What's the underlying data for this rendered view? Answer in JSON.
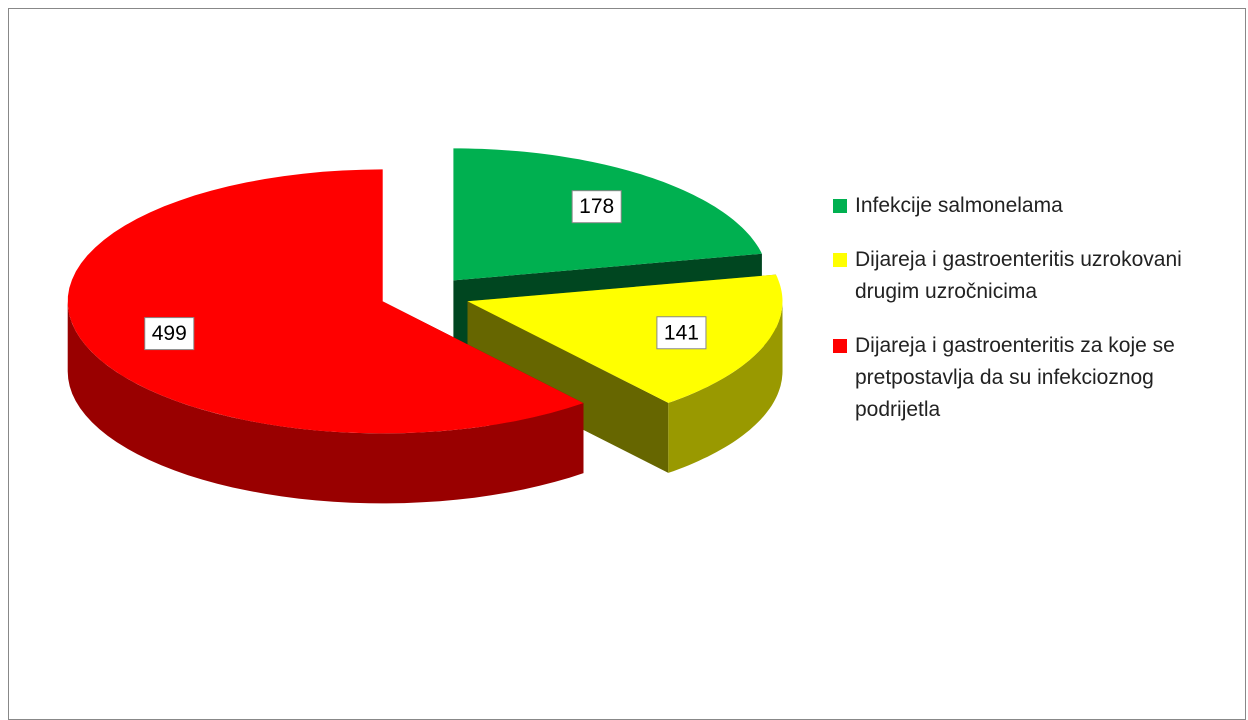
{
  "chart_data": {
    "type": "pie3d",
    "categories": [
      "Infekcije salmonelama",
      "Dijareja i gastroenteritis uzrokovani drugim uzročnicima",
      "Dijareja i gastroenteritis za koje se pretpostavlja da su infekcioznog podrijetla"
    ],
    "values": [
      178,
      141,
      499
    ],
    "colors": [
      "#00b050",
      "#ffff00",
      "#ff0000"
    ],
    "legend": "right"
  }
}
